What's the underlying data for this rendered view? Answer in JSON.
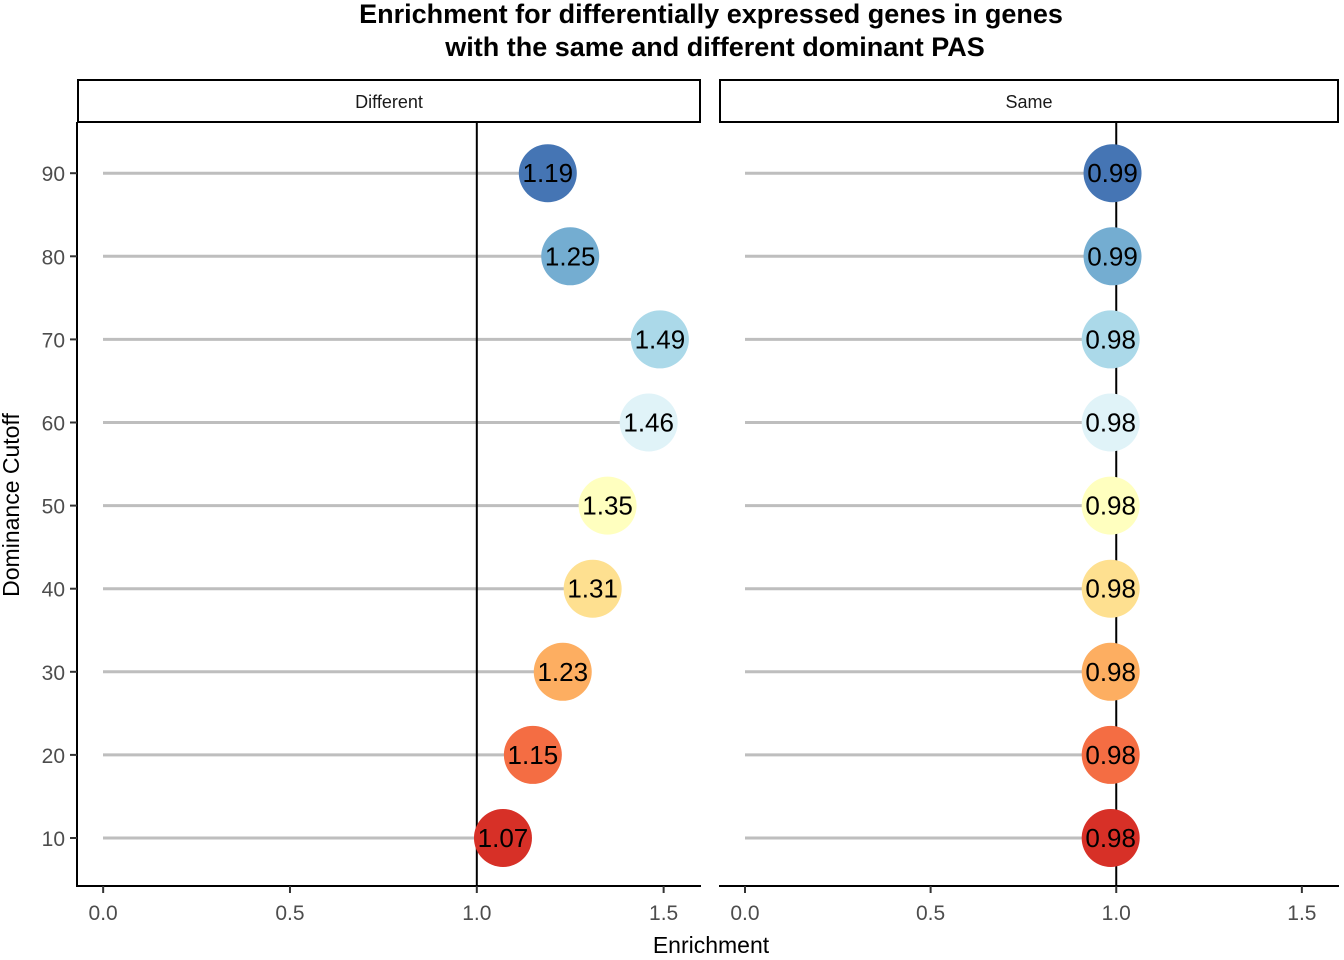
{
  "chart_data": {
    "type": "lollipop",
    "title_lines": [
      "Enrichment for differentially expressed genes in genes",
      "with the same and different dominant PAS"
    ],
    "xlabel": "Enrichment",
    "ylabel": "Dominance Cutoff",
    "xlim": [
      -0.07,
      1.6
    ],
    "x_ticks": [
      0.0,
      0.5,
      1.0,
      1.5
    ],
    "x_tick_labels": [
      "0.0",
      "0.5",
      "1.0",
      "1.5"
    ],
    "y_categories": [
      "10",
      "20",
      "30",
      "40",
      "50",
      "60",
      "70",
      "80",
      "90"
    ],
    "reference_line": 1.0,
    "grid": false,
    "colors": {
      "10": "#d73027",
      "20": "#f46d43",
      "30": "#fdae61",
      "40": "#fee090",
      "50": "#ffffbf",
      "60": "#e0f3f8",
      "70": "#abd9e9",
      "80": "#74add1",
      "90": "#4575b4"
    },
    "stem_color": "#bebebe",
    "panels": [
      {
        "name": "Different",
        "values": [
          1.07,
          1.15,
          1.23,
          1.31,
          1.35,
          1.46,
          1.49,
          1.25,
          1.19
        ],
        "labels": [
          "1.07",
          "1.15",
          "1.23",
          "1.31",
          "1.35",
          "1.46",
          "1.49",
          "1.25",
          "1.19"
        ]
      },
      {
        "name": "Same",
        "values": [
          0.985,
          0.985,
          0.985,
          0.985,
          0.985,
          0.985,
          0.985,
          0.99,
          0.99
        ],
        "labels": [
          "0.98",
          "0.98",
          "0.98",
          "0.98",
          "0.98",
          "0.98",
          "0.98",
          "0.99",
          "0.99"
        ]
      }
    ]
  }
}
